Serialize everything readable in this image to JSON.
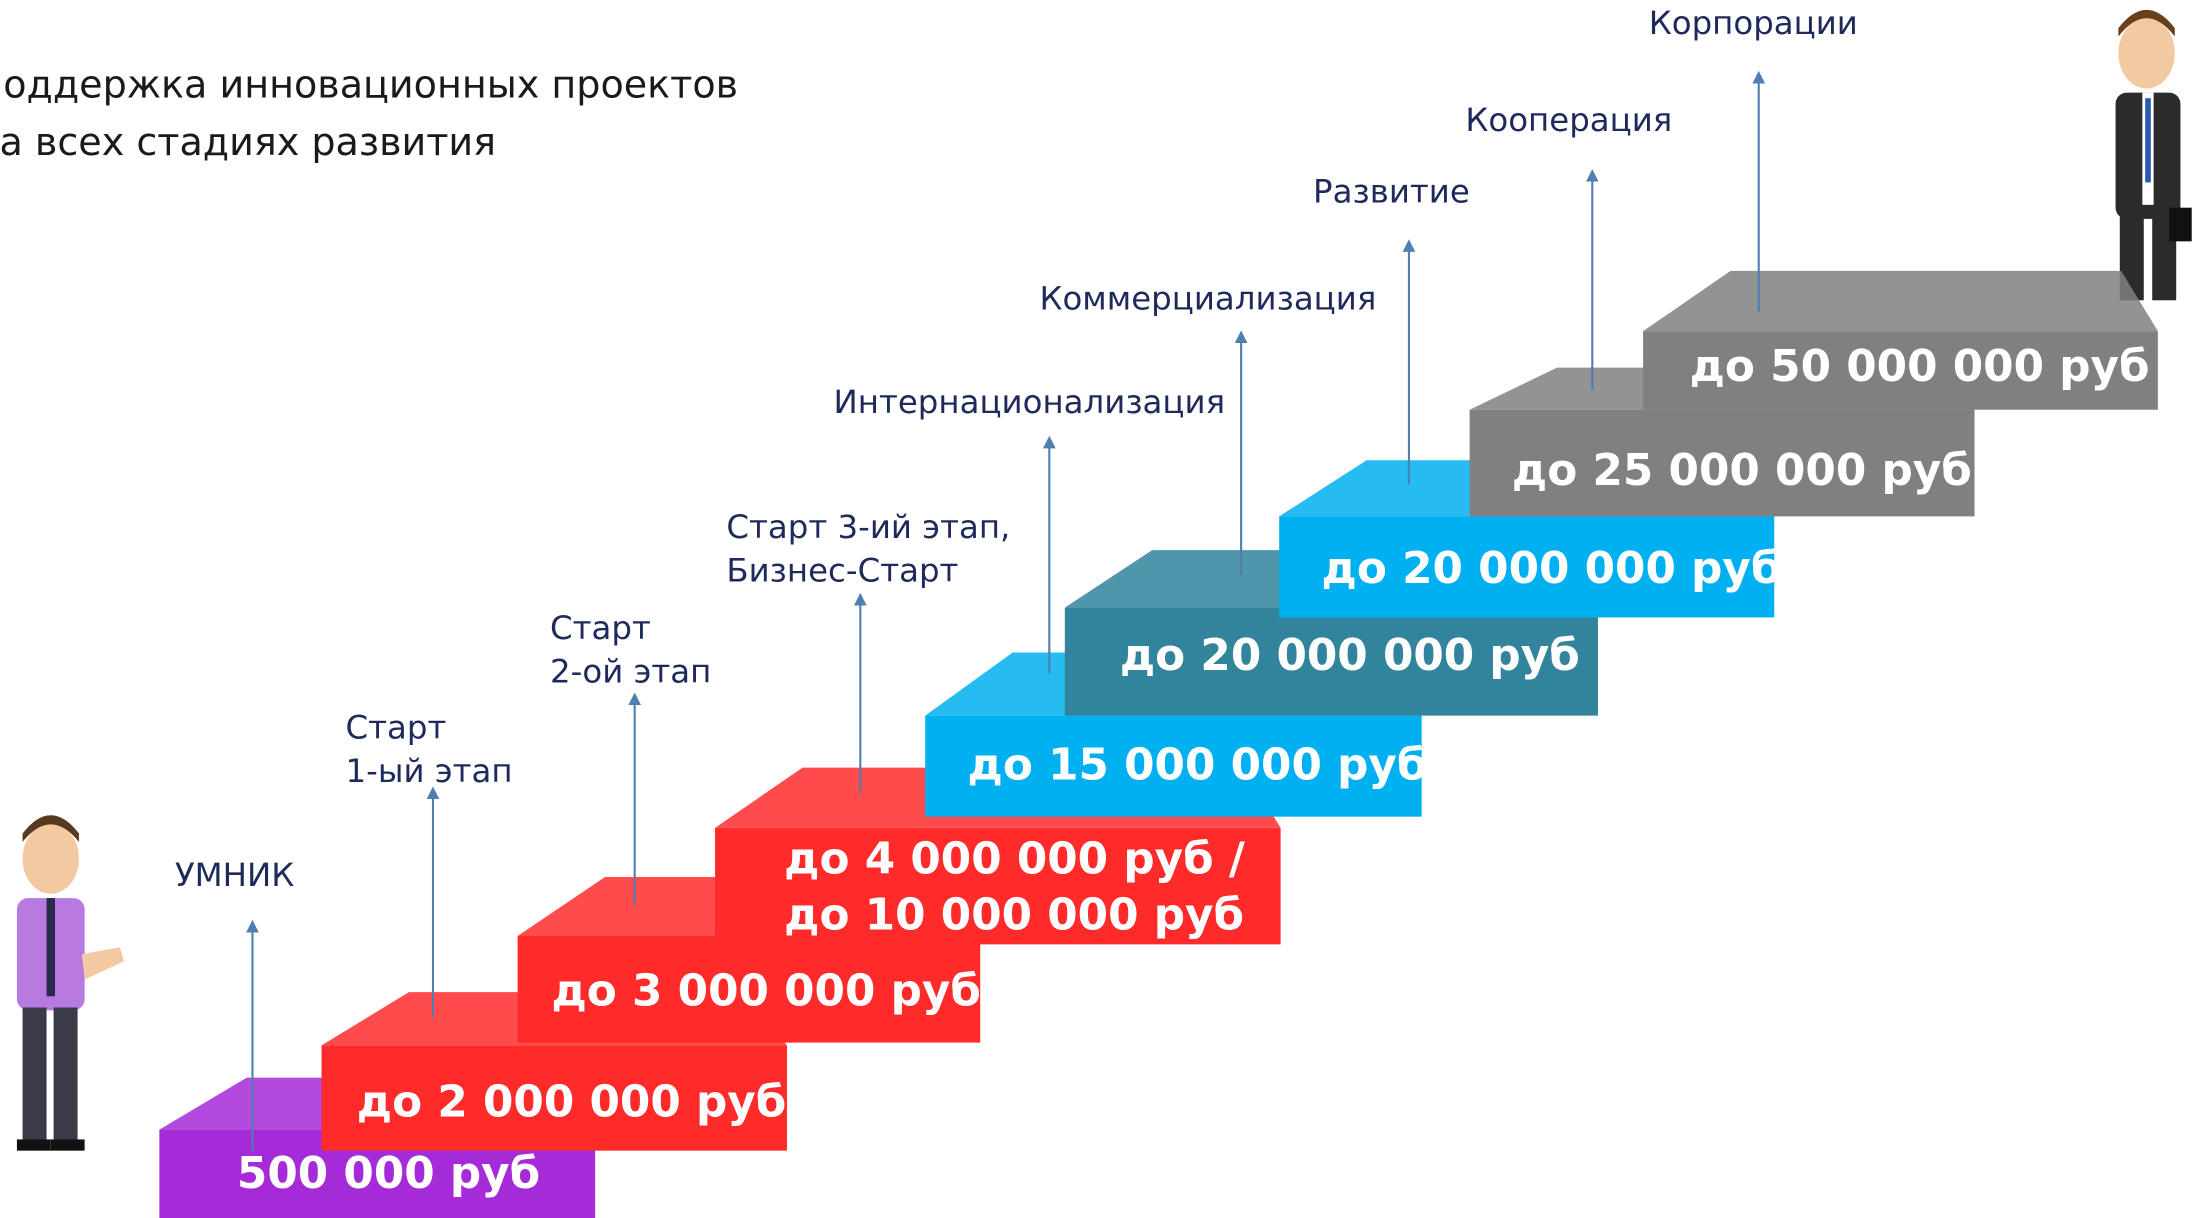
{
  "title": {
    "lines": [
      "Поддержка инновационных проектов",
      "на всех стадиях развития"
    ]
  },
  "steps": [
    {
      "label": [
        "УМНИК"
      ],
      "amount": [
        "500 000 руб"
      ],
      "color": "#a52ad8"
    },
    {
      "label": [
        "Старт",
        "1-ый этап"
      ],
      "amount": [
        "до 2 000 000 руб"
      ],
      "color": "#ff2b2b"
    },
    {
      "label": [
        "Старт",
        "2-ой этап"
      ],
      "amount": [
        "до 3 000 000 руб"
      ],
      "color": "#ff2b2b"
    },
    {
      "label": [
        "Старт 3-ий этап,",
        "Бизнес-Старт"
      ],
      "amount": [
        "до 4 000 000 руб /",
        "до 10 000 000 руб"
      ],
      "color": "#ff2b2b"
    },
    {
      "label": [
        "Интернационализация"
      ],
      "amount": [
        "до 15 000 000 руб"
      ],
      "color": "#00b0f0"
    },
    {
      "label": [
        "Коммерциализация"
      ],
      "amount": [
        "до 20 000 000 руб"
      ],
      "color": "#31849b"
    },
    {
      "label": [
        "Развитие"
      ],
      "amount": [
        "до 20 000 000 руб"
      ],
      "color": "#00b0f0"
    },
    {
      "label": [
        "Кооперация"
      ],
      "amount": [
        "до 25 000 000 руб"
      ],
      "color": "#808080"
    },
    {
      "label": [
        "Корпорации"
      ],
      "amount": [
        "до 50 000 000 руб"
      ],
      "color": "#808080"
    }
  ]
}
